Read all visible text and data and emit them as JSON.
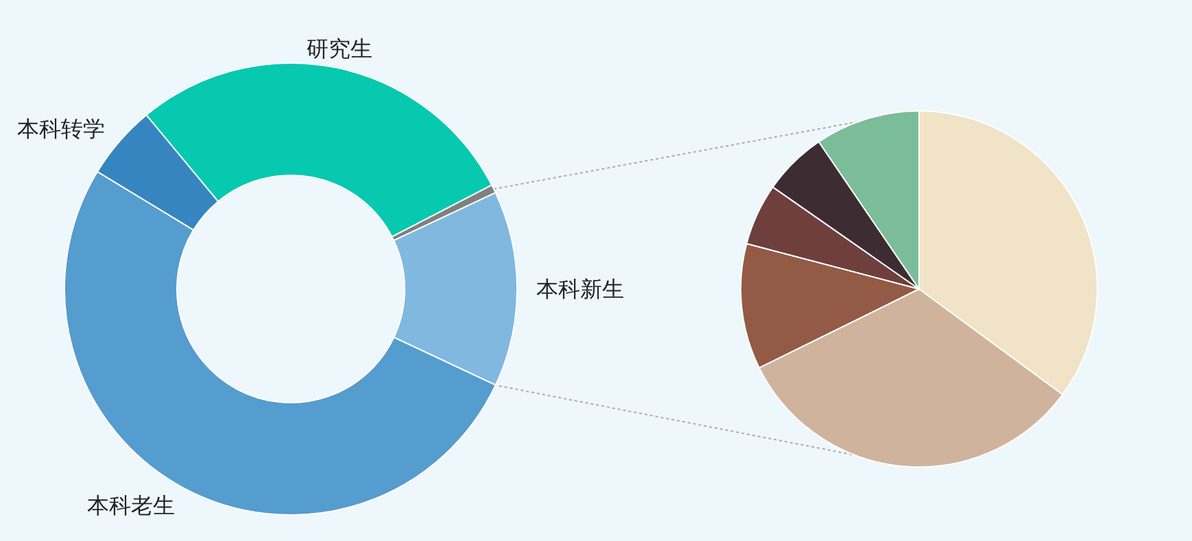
{
  "chart_data": [
    {
      "type": "donut",
      "categories": [
        null,
        "本科新生",
        "本科老生",
        "本科转学",
        "研究生"
      ],
      "values": [
        0.6,
        14.0,
        51.7,
        5.3,
        28.4
      ],
      "colors": [
        "#808080",
        "#80b8e0",
        "#559ccf",
        "#3685c1",
        "#06c9af"
      ]
    },
    {
      "type": "pie",
      "categories": [
        null,
        null,
        null,
        null,
        null,
        null
      ],
      "values": [
        35.1,
        32.6,
        11.4,
        5.6,
        5.8,
        9.5
      ],
      "colors": [
        "#f1e3c8",
        "#cfb39d",
        "#935a45",
        "#6e3f3d",
        "#3e2c33",
        "#7bbd99"
      ]
    }
  ]
}
